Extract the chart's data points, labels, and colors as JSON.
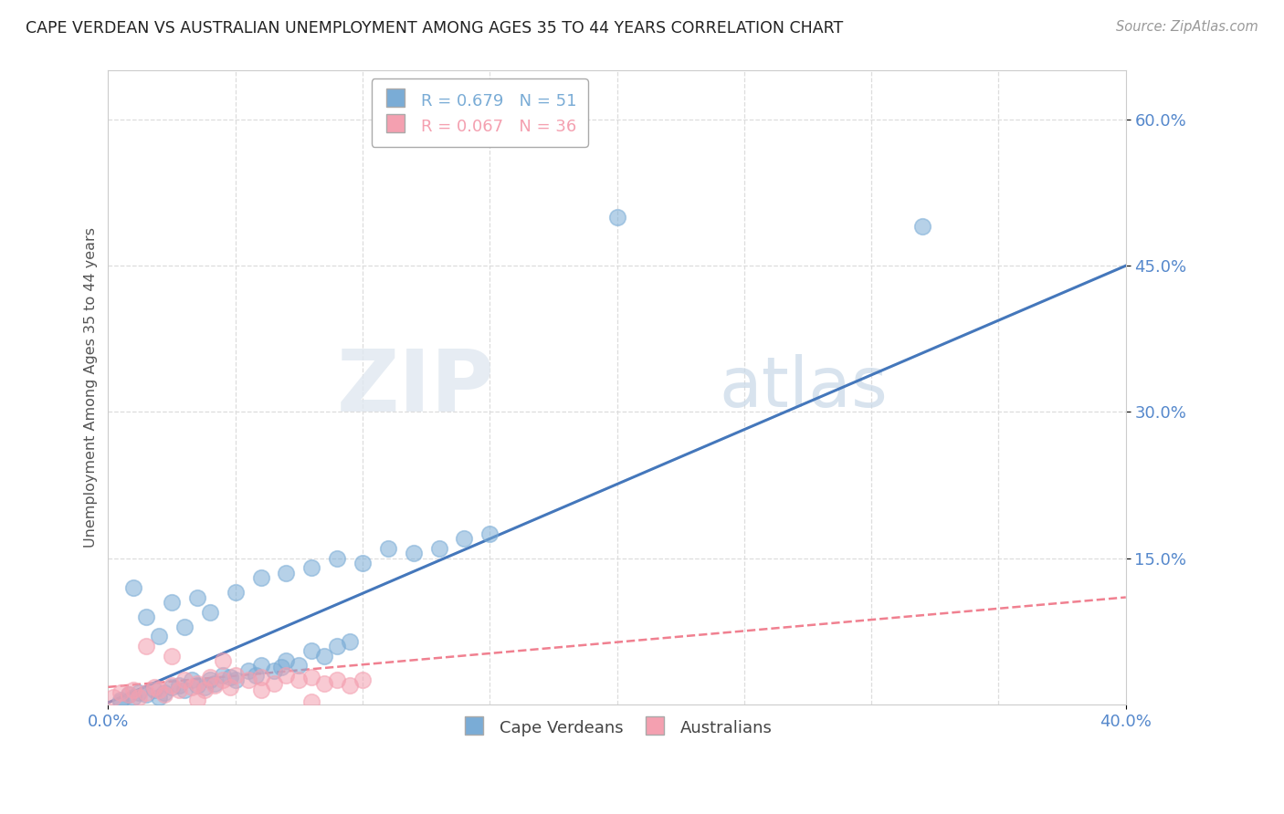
{
  "title": "CAPE VERDEAN VS AUSTRALIAN UNEMPLOYMENT AMONG AGES 35 TO 44 YEARS CORRELATION CHART",
  "source": "Source: ZipAtlas.com",
  "xlim": [
    0.0,
    0.4
  ],
  "ylim": [
    0.0,
    0.65
  ],
  "R_blue": 0.679,
  "N_blue": 51,
  "R_pink": 0.067,
  "N_pink": 36,
  "blue_color": "#7aacd6",
  "pink_color": "#f4a0b0",
  "blue_line_color": "#4477BB",
  "pink_line_color": "#f08090",
  "legend_label_blue": "Cape Verdeans",
  "legend_label_pink": "Australians",
  "watermark_zip": "ZIP",
  "watermark_atlas": "atlas",
  "blue_x": [
    0.005,
    0.008,
    0.01,
    0.012,
    0.015,
    0.018,
    0.02,
    0.022,
    0.025,
    0.028,
    0.03,
    0.033,
    0.035,
    0.038,
    0.04,
    0.042,
    0.045,
    0.048,
    0.05,
    0.055,
    0.058,
    0.06,
    0.065,
    0.068,
    0.07,
    0.075,
    0.08,
    0.085,
    0.09,
    0.095,
    0.01,
    0.015,
    0.02,
    0.025,
    0.03,
    0.035,
    0.04,
    0.05,
    0.06,
    0.07,
    0.08,
    0.09,
    0.1,
    0.11,
    0.12,
    0.13,
    0.14,
    0.15,
    0.2,
    0.32,
    0.005
  ],
  "blue_y": [
    0.005,
    0.01,
    0.008,
    0.012,
    0.01,
    0.015,
    0.008,
    0.012,
    0.018,
    0.02,
    0.015,
    0.025,
    0.02,
    0.018,
    0.025,
    0.022,
    0.03,
    0.028,
    0.025,
    0.035,
    0.03,
    0.04,
    0.035,
    0.038,
    0.045,
    0.04,
    0.055,
    0.05,
    0.06,
    0.065,
    0.12,
    0.09,
    0.07,
    0.105,
    0.08,
    0.11,
    0.095,
    0.115,
    0.13,
    0.135,
    0.14,
    0.15,
    0.145,
    0.16,
    0.155,
    0.16,
    0.17,
    0.175,
    0.5,
    0.49,
    0.003
  ],
  "pink_x": [
    0.002,
    0.005,
    0.008,
    0.01,
    0.012,
    0.015,
    0.018,
    0.02,
    0.022,
    0.025,
    0.028,
    0.03,
    0.033,
    0.035,
    0.038,
    0.04,
    0.042,
    0.045,
    0.048,
    0.05,
    0.055,
    0.06,
    0.065,
    0.07,
    0.075,
    0.08,
    0.085,
    0.09,
    0.095,
    0.1,
    0.015,
    0.025,
    0.035,
    0.045,
    0.06,
    0.08
  ],
  "pink_y": [
    0.008,
    0.012,
    0.01,
    0.015,
    0.008,
    0.012,
    0.018,
    0.015,
    0.01,
    0.02,
    0.015,
    0.025,
    0.018,
    0.022,
    0.015,
    0.028,
    0.02,
    0.025,
    0.018,
    0.03,
    0.025,
    0.028,
    0.022,
    0.03,
    0.025,
    0.028,
    0.022,
    0.025,
    0.02,
    0.025,
    0.06,
    0.05,
    0.005,
    0.045,
    0.015,
    0.003
  ]
}
